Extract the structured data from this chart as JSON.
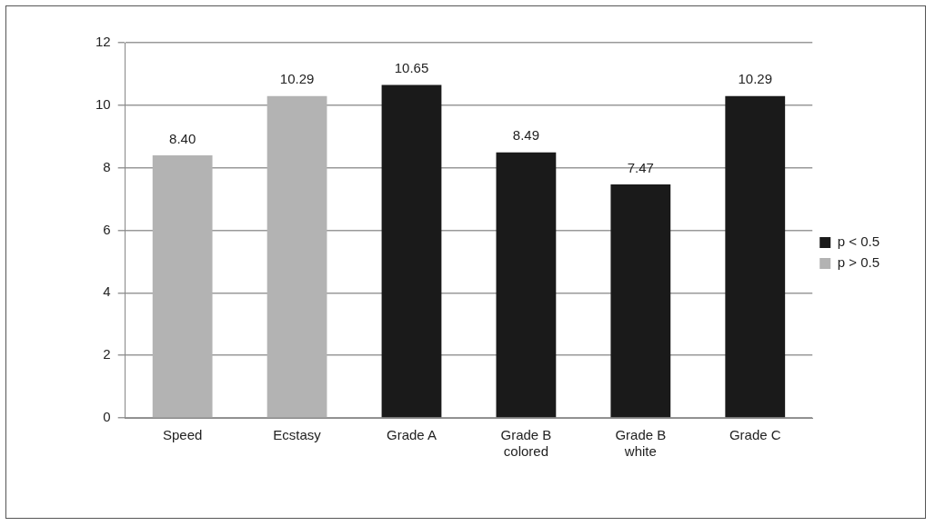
{
  "chart_data": {
    "type": "bar",
    "categories": [
      "Speed",
      "Ecstasy",
      "Grade A",
      "Grade B colored",
      "Grade B white",
      "Grade C"
    ],
    "series": [
      {
        "name": "p < 0.5",
        "color": "#1a1a1a",
        "values": [
          null,
          null,
          10.65,
          8.49,
          7.47,
          10.29
        ],
        "value_labels": [
          null,
          null,
          "10.65",
          "8.49",
          "7.47",
          "10.29"
        ]
      },
      {
        "name": "p > 0.5",
        "color": "#b3b3b3",
        "values": [
          8.4,
          10.29,
          null,
          null,
          null,
          null
        ],
        "value_labels": [
          "8.40",
          "10.29",
          null,
          null,
          null,
          null
        ]
      }
    ],
    "ylim": [
      0,
      12
    ],
    "yticks": [
      0,
      2,
      4,
      6,
      8,
      10,
      12
    ],
    "grid": "y",
    "legend": "right"
  }
}
